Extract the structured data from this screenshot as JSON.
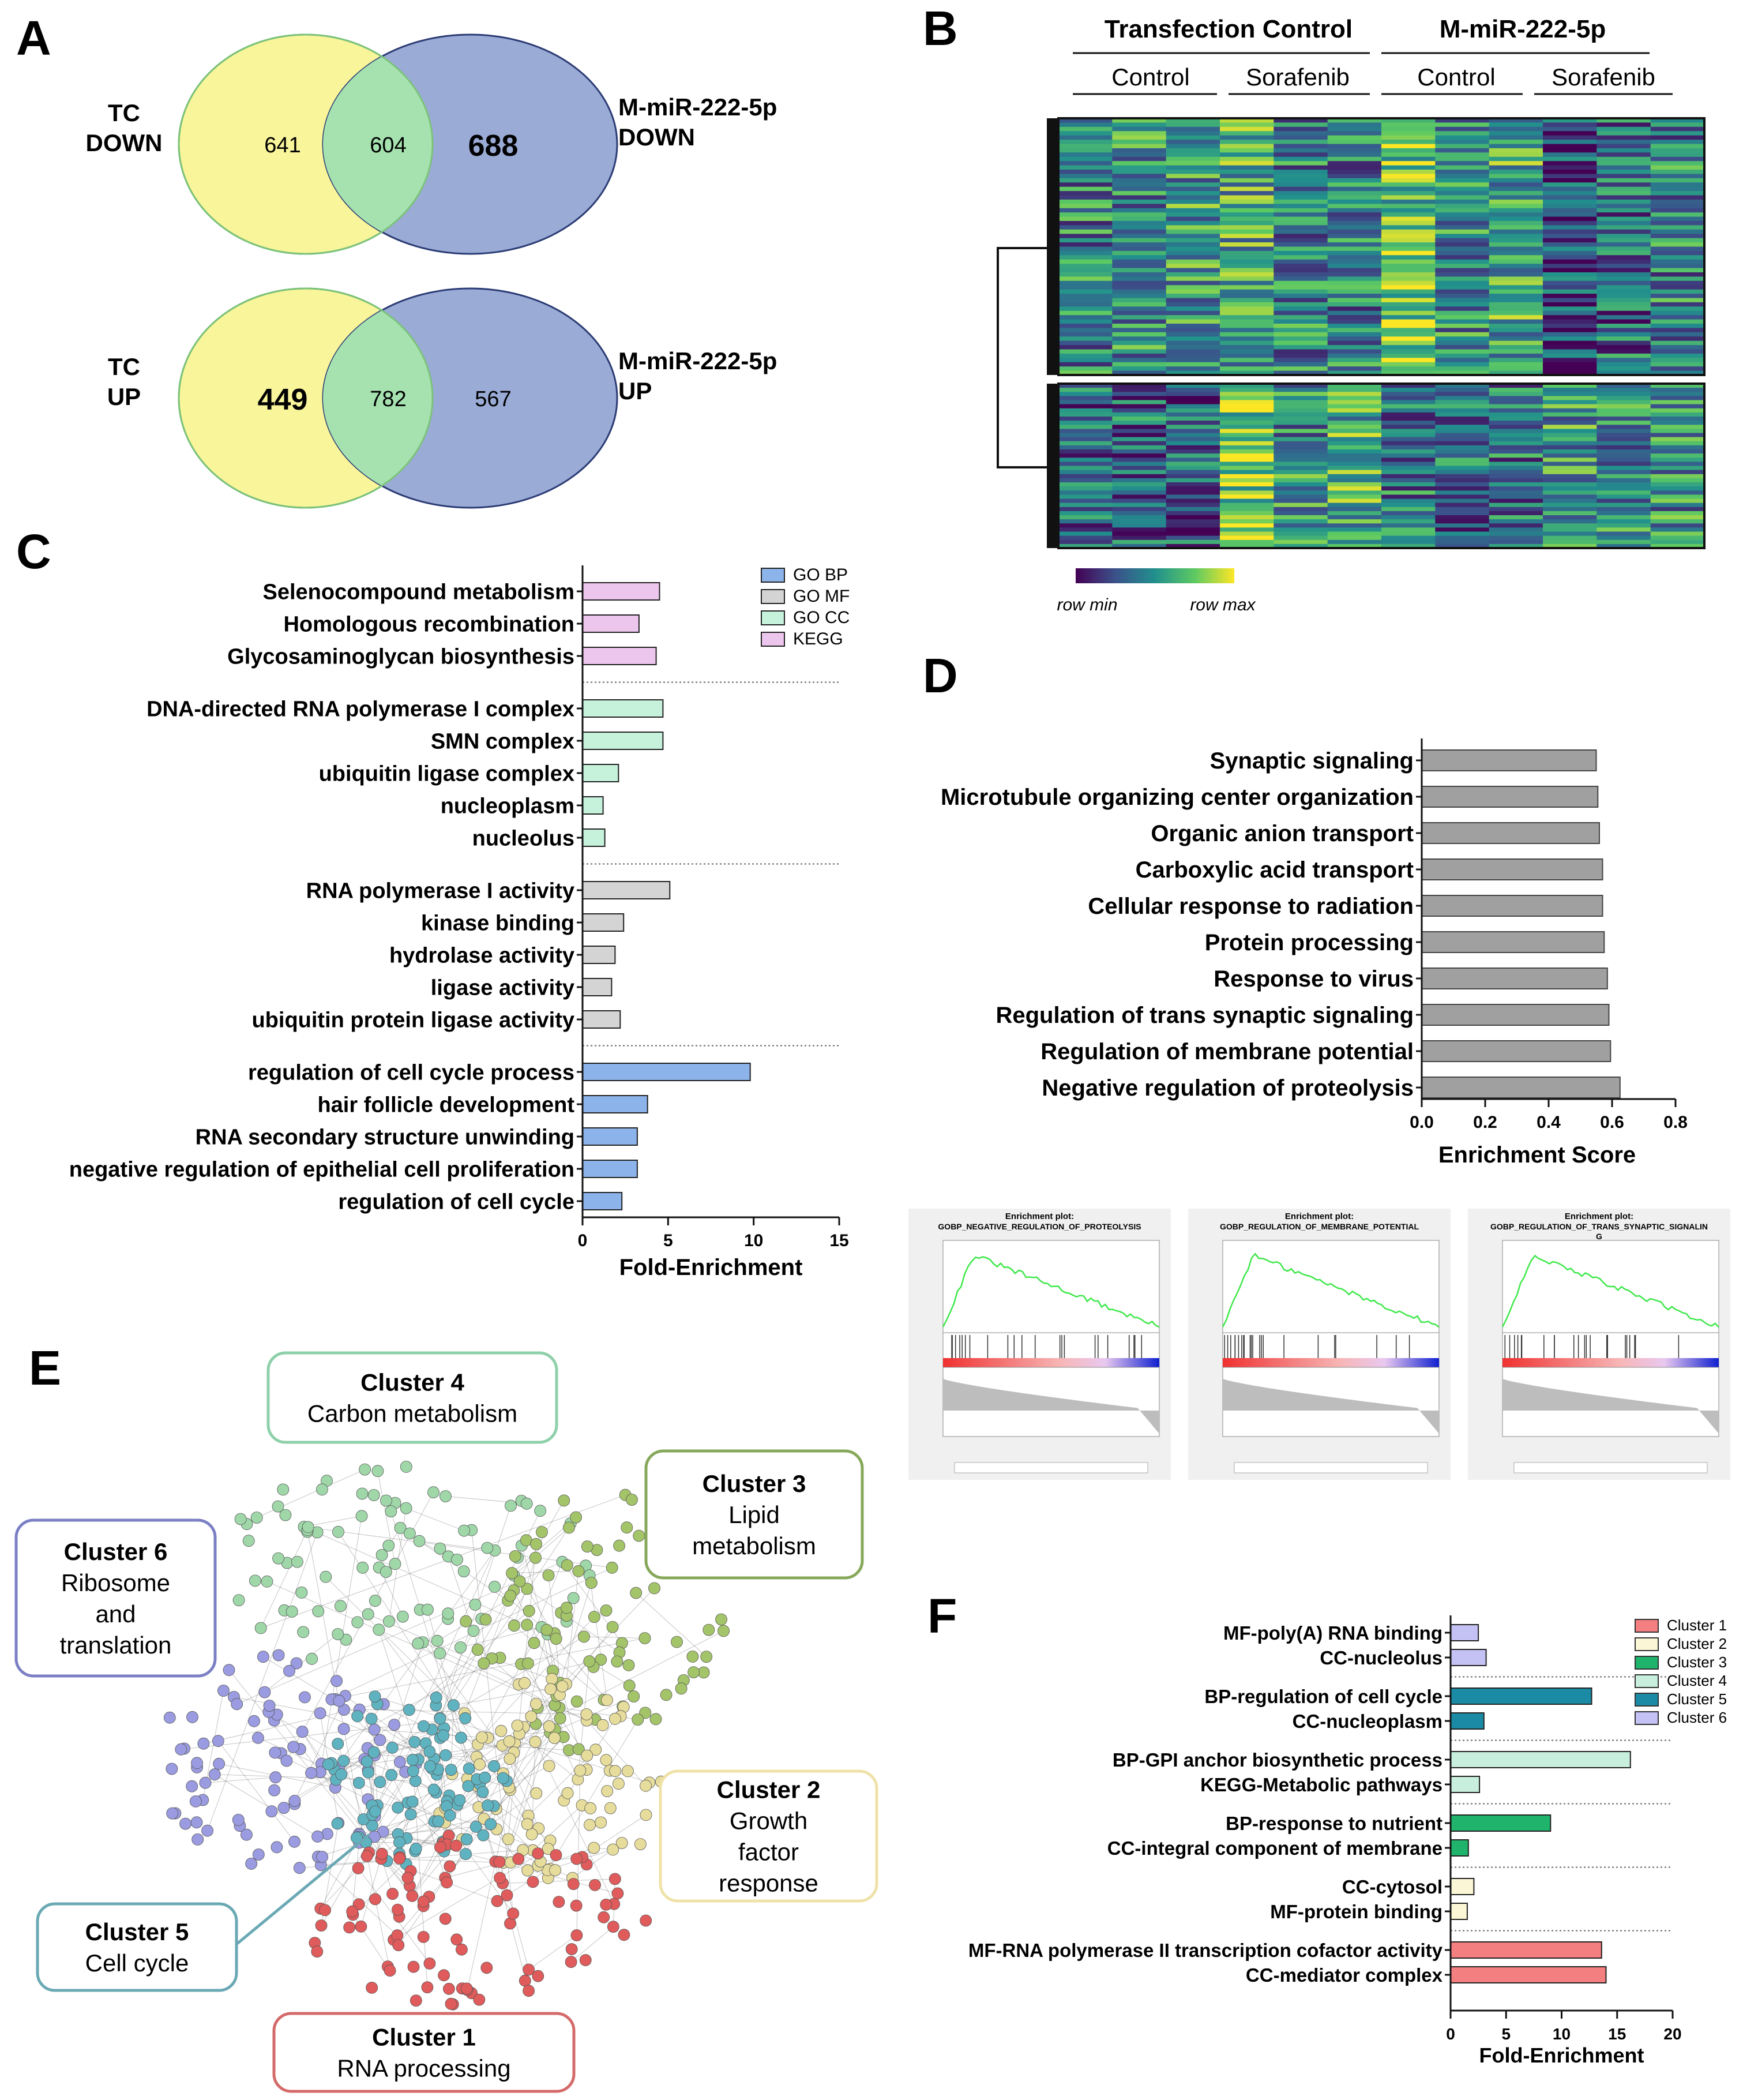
{
  "panels": {
    "A": {
      "letter": "A",
      "venn": [
        {
          "left_label": [
            "TC",
            "DOWN"
          ],
          "right_label": [
            "M-miR-222-5p",
            "DOWN"
          ],
          "left_only": "641",
          "overlap": "604",
          "right_only": "688"
        },
        {
          "left_label": [
            "TC",
            "UP"
          ],
          "right_label": [
            "M-miR-222-5p",
            "UP"
          ],
          "left_only": "449",
          "overlap": "782",
          "right_only": "567"
        }
      ],
      "colors": {
        "left": "#f9f59b",
        "overlap": "#a6e2b0",
        "right": "#9aabd6"
      }
    },
    "B": {
      "letter": "B",
      "groups": [
        "Transfection Control",
        "M-miR-222-5p"
      ],
      "subgroups": [
        "Control",
        "Sorafenib",
        "Control",
        "Sorafenib"
      ],
      "legend_min": "row min",
      "legend_max": "row max",
      "colormap": [
        "#440154",
        "#3b528b",
        "#21908d",
        "#5dc963",
        "#fde725"
      ]
    },
    "C": {
      "letter": "C",
      "legend": [
        {
          "label": "GO BP",
          "color": "#8db4ea"
        },
        {
          "label": "GO MF",
          "color": "#d4d4d4"
        },
        {
          "label": "GO CC",
          "color": "#c6f2dc"
        },
        {
          "label": "KEGG",
          "color": "#edc6ee"
        }
      ]
    },
    "D": {
      "letter": "D",
      "gsea": [
        {
          "title1": "Enrichment plot:",
          "title2": "GOBP_NEGATIVE_REGULATION_OF_PROTEOLYSIS"
        },
        {
          "title1": "Enrichment plot:",
          "title2": "GOBP_REGULATION_OF_MEMBRANE_POTENTIAL"
        },
        {
          "title1": "Enrichment plot:",
          "title2": "GOBP_REGULATION_OF_TRANS_SYNAPTIC_SIGNALIN",
          "title3": "G"
        }
      ]
    },
    "E": {
      "letter": "E",
      "clusters": [
        {
          "title": "Cluster 4",
          "lines": [
            "Carbon metabolism"
          ],
          "color": "#8ed0a9"
        },
        {
          "title": "Cluster 3",
          "lines": [
            "Lipid",
            "metabolism"
          ],
          "color": "#86a85a"
        },
        {
          "title": "Cluster 6",
          "lines": [
            "Ribosome",
            "and",
            "translation"
          ],
          "color": "#7b7fc4"
        },
        {
          "title": "Cluster 2",
          "lines": [
            "Growth",
            "factor",
            "response"
          ],
          "color": "#efe2a8"
        },
        {
          "title": "Cluster 5",
          "lines": [
            "Cell cycle"
          ],
          "color": "#6aa9b4"
        },
        {
          "title": "Cluster 1",
          "lines": [
            "RNA processing"
          ],
          "color": "#d46a6a"
        }
      ]
    },
    "F": {
      "letter": "F",
      "legend": [
        {
          "label": "Cluster 1",
          "color": "#f47f80"
        },
        {
          "label": "Cluster 2",
          "color": "#fbf7d6"
        },
        {
          "label": "Cluster 3",
          "color": "#1fb36b"
        },
        {
          "label": "Cluster 4",
          "color": "#c8efdd"
        },
        {
          "label": "Cluster 5",
          "color": "#1b8aa4"
        },
        {
          "label": "Cluster 6",
          "color": "#c4c1f4"
        }
      ]
    }
  },
  "chart_data": [
    {
      "panel": "C",
      "type": "bar",
      "orientation": "horizontal",
      "xlabel": "Fold-Enrichment",
      "xlim": [
        0,
        15
      ],
      "xticks": [
        0,
        5,
        10,
        15
      ],
      "groups": [
        {
          "series": "KEGG",
          "categories": [
            "Selenocompound metabolism",
            "Homologous recombination",
            "Glycosaminoglycan biosynthesis"
          ],
          "values": [
            4.5,
            3.3,
            4.3
          ]
        },
        {
          "series": "GO CC",
          "categories": [
            "DNA-directed RNA polymerase I complex",
            "SMN complex",
            "ubiquitin ligase complex",
            "nucleoplasm",
            "nucleolus"
          ],
          "values": [
            4.7,
            4.7,
            2.1,
            1.2,
            1.3
          ]
        },
        {
          "series": "GO MF",
          "categories": [
            "RNA polymerase I activity",
            "kinase binding",
            "hydrolase activity",
            "ligase activity",
            "ubiquitin protein ligase activity"
          ],
          "values": [
            5.1,
            2.4,
            1.9,
            1.7,
            2.2
          ]
        },
        {
          "series": "GO BP",
          "categories": [
            "regulation of cell cycle process",
            "hair follicle development",
            "RNA secondary structure unwinding",
            "negative regulation of epithelial cell proliferation",
            "regulation of cell cycle"
          ],
          "values": [
            9.8,
            3.8,
            3.2,
            3.2,
            2.3
          ]
        }
      ]
    },
    {
      "panel": "D",
      "type": "bar",
      "orientation": "horizontal",
      "xlabel": "Enrichment  Score",
      "xlim": [
        0,
        0.8
      ],
      "xticks": [
        "0.0",
        "0.2",
        "0.4",
        "0.6",
        "0.8"
      ],
      "categories": [
        "Synaptic signaling",
        "Microtubule organizing center organization",
        "Organic anion transport",
        "Carboxylic acid transport",
        "Cellular response to radiation",
        "Protein processing",
        "Response to virus",
        "Regulation of trans synaptic signaling",
        "Regulation of membrane potential",
        "Negative regulation of proteolysis"
      ],
      "values": [
        0.55,
        0.555,
        0.56,
        0.57,
        0.57,
        0.575,
        0.585,
        0.59,
        0.595,
        0.625
      ],
      "color": "#a0a0a0"
    },
    {
      "panel": "F",
      "type": "bar",
      "orientation": "horizontal",
      "xlabel": "Fold-Enrichment",
      "xlim": [
        0,
        20
      ],
      "xticks": [
        0,
        5,
        10,
        15,
        20
      ],
      "groups": [
        {
          "series": "Cluster 6",
          "categories": [
            "MF-poly(A) RNA binding",
            "CC-nucleolus"
          ],
          "values": [
            2.5,
            3.2
          ]
        },
        {
          "series": "Cluster 5",
          "categories": [
            "BP-regulation of cell cycle",
            "CC-nucleoplasm"
          ],
          "values": [
            12.7,
            3.0
          ]
        },
        {
          "series": "Cluster 4",
          "categories": [
            "BP-GPI anchor biosynthetic process",
            "KEGG-Metabolic pathways"
          ],
          "values": [
            16.2,
            2.6
          ]
        },
        {
          "series": "Cluster 3",
          "categories": [
            "BP-response to nutrient",
            "CC-integral component of membrane"
          ],
          "values": [
            9.0,
            1.6
          ]
        },
        {
          "series": "Cluster 2",
          "categories": [
            "CC-cytosol",
            "MF-protein binding"
          ],
          "values": [
            2.1,
            1.5
          ]
        },
        {
          "series": "Cluster 1",
          "categories": [
            "MF-RNA polymerase II transcription cofactor activity",
            "CC-mediator complex"
          ],
          "values": [
            13.6,
            14.0
          ]
        }
      ]
    }
  ]
}
